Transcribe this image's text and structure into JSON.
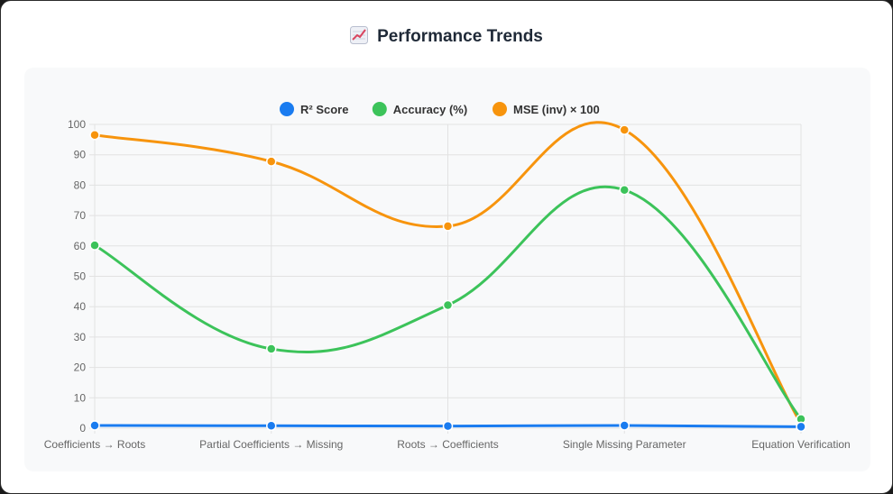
{
  "header": {
    "title": "Performance Trends",
    "icon": "chart-increasing-icon"
  },
  "colors": {
    "r2": "#1a7cf0",
    "accuracy": "#3cc35a",
    "mse": "#f7940d",
    "grid": "#e2e2e2",
    "tick_text": "#666666"
  },
  "chart_data": {
    "type": "line",
    "title": "",
    "xlabel": "",
    "ylabel": "",
    "ylim": [
      0,
      100
    ],
    "yticks": [
      0,
      10,
      20,
      30,
      40,
      50,
      60,
      70,
      80,
      90,
      100
    ],
    "grid": true,
    "legend_position": "top-center",
    "categories": [
      "Coefficients → Roots",
      "Partial Coefficients → Missing",
      "Roots → Coefficients",
      "Single Missing Parameter",
      "Equation Verification"
    ],
    "series": [
      {
        "name": "R² Score",
        "color": "#1a7cf0",
        "values": [
          0.9,
          0.8,
          0.7,
          0.9,
          0.5
        ]
      },
      {
        "name": "Accuracy (%)",
        "color": "#3cc35a",
        "values": [
          60.2,
          26.1,
          40.5,
          78.4,
          3.0
        ]
      },
      {
        "name": "MSE (inv) × 100",
        "color": "#f7940d",
        "values": [
          96.5,
          87.8,
          66.5,
          98.2,
          1.5
        ]
      }
    ]
  }
}
